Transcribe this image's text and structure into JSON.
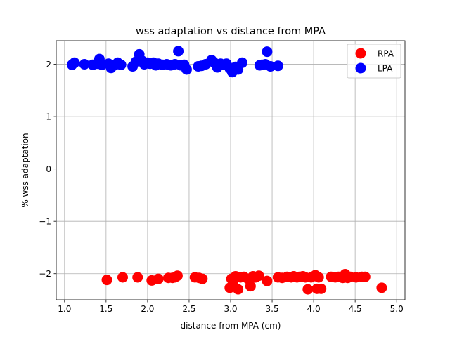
{
  "chart_data": {
    "type": "scatter",
    "title": "wss adaptation vs distance from MPA",
    "xlabel": "distance from MPA (cm)",
    "ylabel": "% wss adaptation",
    "xlim": [
      0.9,
      5.1
    ],
    "ylim": [
      -2.5,
      2.45
    ],
    "xticks": [
      1.0,
      1.5,
      2.0,
      2.5,
      3.0,
      3.5,
      4.0,
      4.5,
      5.0
    ],
    "xtick_labels": [
      "1.0",
      "1.5",
      "2.0",
      "2.5",
      "3.0",
      "3.5",
      "4.0",
      "4.5",
      "5.0"
    ],
    "yticks": [
      -2,
      -1,
      0,
      1,
      2
    ],
    "ytick_labels": [
      "−2",
      "−1",
      "0",
      "1",
      "2"
    ],
    "grid": true,
    "legend_position": "top-right",
    "series": [
      {
        "name": "RPA",
        "color": "#ff0000",
        "points": [
          [
            1.51,
            -2.12
          ],
          [
            1.7,
            -2.07
          ],
          [
            1.88,
            -2.07
          ],
          [
            2.05,
            -2.13
          ],
          [
            2.13,
            -2.1
          ],
          [
            2.25,
            -2.08
          ],
          [
            2.3,
            -2.08
          ],
          [
            2.33,
            -2.07
          ],
          [
            2.36,
            -2.04
          ],
          [
            2.57,
            -2.07
          ],
          [
            2.62,
            -2.08
          ],
          [
            2.66,
            -2.1
          ],
          [
            2.99,
            -2.27
          ],
          [
            3.01,
            -2.1
          ],
          [
            3.03,
            -2.2
          ],
          [
            3.06,
            -2.05
          ],
          [
            3.09,
            -2.3
          ],
          [
            3.12,
            -2.07
          ],
          [
            3.16,
            -2.06
          ],
          [
            3.21,
            -2.1
          ],
          [
            3.24,
            -2.24
          ],
          [
            3.27,
            -2.05
          ],
          [
            3.3,
            -2.07
          ],
          [
            3.34,
            -2.04
          ],
          [
            3.44,
            -2.14
          ],
          [
            3.57,
            -2.07
          ],
          [
            3.62,
            -2.08
          ],
          [
            3.68,
            -2.06
          ],
          [
            3.73,
            -2.07
          ],
          [
            3.76,
            -2.05
          ],
          [
            3.8,
            -2.07
          ],
          [
            3.83,
            -2.06
          ],
          [
            3.87,
            -2.05
          ],
          [
            3.9,
            -2.07
          ],
          [
            3.93,
            -2.3
          ],
          [
            3.97,
            -2.07
          ],
          [
            4.02,
            -2.03
          ],
          [
            4.04,
            -2.29
          ],
          [
            4.06,
            -2.07
          ],
          [
            4.09,
            -2.29
          ],
          [
            4.21,
            -2.06
          ],
          [
            4.26,
            -2.07
          ],
          [
            4.3,
            -2.06
          ],
          [
            4.35,
            -2.08
          ],
          [
            4.38,
            -2.01
          ],
          [
            4.41,
            -2.08
          ],
          [
            4.44,
            -2.06
          ],
          [
            4.51,
            -2.07
          ],
          [
            4.58,
            -2.06
          ],
          [
            4.62,
            -2.06
          ],
          [
            4.82,
            -2.27
          ]
        ]
      },
      {
        "name": "LPA",
        "color": "#0000ff",
        "points": [
          [
            1.09,
            1.99
          ],
          [
            1.12,
            2.03
          ],
          [
            1.24,
            2.0
          ],
          [
            1.34,
            1.99
          ],
          [
            1.39,
            2.01
          ],
          [
            1.42,
            2.1
          ],
          [
            1.45,
            1.99
          ],
          [
            1.53,
            2.01
          ],
          [
            1.56,
            1.93
          ],
          [
            1.6,
            1.98
          ],
          [
            1.64,
            2.03
          ],
          [
            1.68,
            1.99
          ],
          [
            1.82,
            1.96
          ],
          [
            1.86,
            2.05
          ],
          [
            1.9,
            2.19
          ],
          [
            1.93,
            2.07
          ],
          [
            1.96,
            2.0
          ],
          [
            2.0,
            2.03
          ],
          [
            2.03,
            2.01
          ],
          [
            2.07,
            2.03
          ],
          [
            2.1,
            1.98
          ],
          [
            2.13,
            2.01
          ],
          [
            2.18,
            1.99
          ],
          [
            2.23,
            2.0
          ],
          [
            2.28,
            1.98
          ],
          [
            2.33,
            2.0
          ],
          [
            2.37,
            2.25
          ],
          [
            2.4,
            1.98
          ],
          [
            2.44,
            1.99
          ],
          [
            2.47,
            1.9
          ],
          [
            2.61,
            1.96
          ],
          [
            2.65,
            1.97
          ],
          [
            2.7,
            2.0
          ],
          [
            2.77,
            2.08
          ],
          [
            2.81,
            2.02
          ],
          [
            2.84,
            1.94
          ],
          [
            2.88,
            2.01
          ],
          [
            2.92,
            1.99
          ],
          [
            2.95,
            2.01
          ],
          [
            2.99,
            1.92
          ],
          [
            3.02,
            1.85
          ],
          [
            3.06,
            1.95
          ],
          [
            3.09,
            1.9
          ],
          [
            3.14,
            2.03
          ],
          [
            3.35,
            1.98
          ],
          [
            3.38,
            1.99
          ],
          [
            3.42,
            2.0
          ],
          [
            3.44,
            2.24
          ],
          [
            3.48,
            1.96
          ],
          [
            3.57,
            1.97
          ]
        ]
      }
    ]
  }
}
